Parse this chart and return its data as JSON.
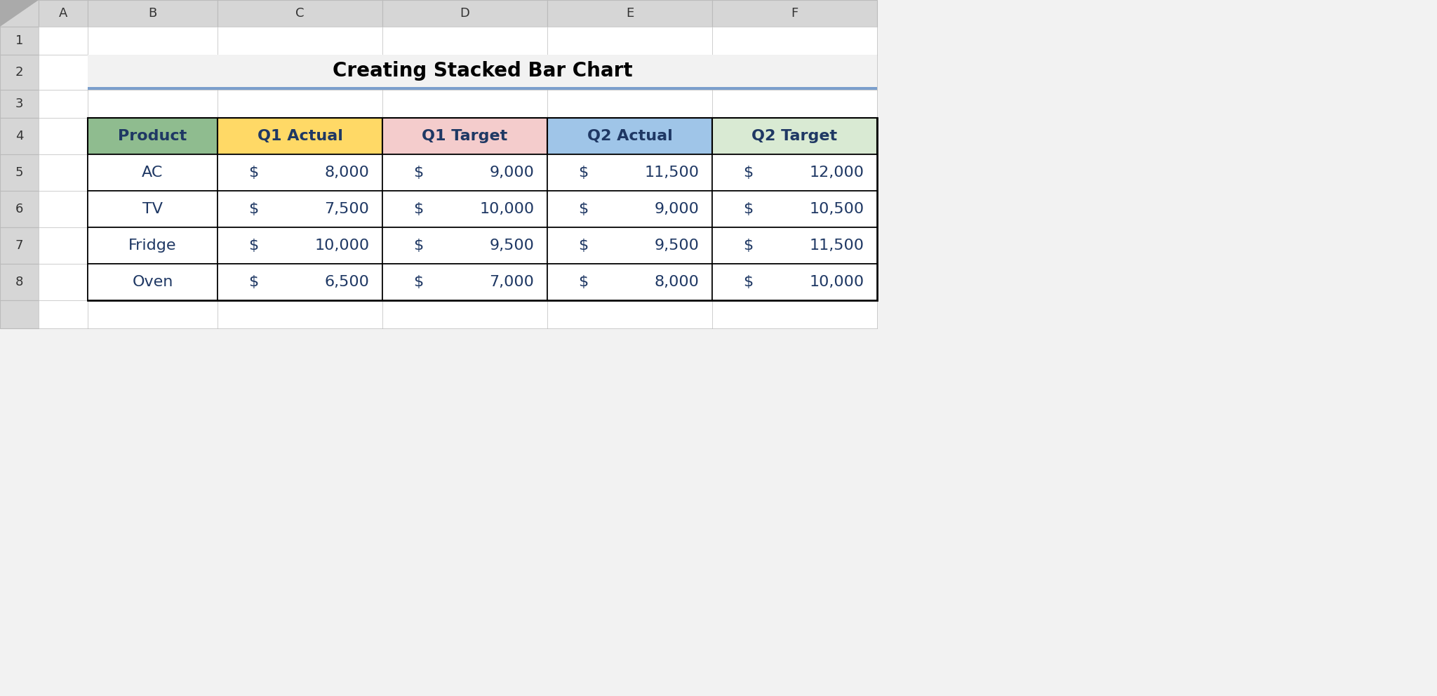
{
  "title": "Creating Stacked Bar Chart",
  "title_fontsize": 20,
  "col_headers": [
    "Product",
    "Q1 Actual",
    "Q1 Target",
    "Q2 Actual",
    "Q2 Target"
  ],
  "col_header_colors": [
    "#8FBC8F",
    "#FFD966",
    "#F4CCCC",
    "#9FC5E8",
    "#D9EAD3"
  ],
  "rows": [
    [
      "AC",
      8000,
      9000,
      11500,
      12000
    ],
    [
      "TV",
      7500,
      10000,
      9000,
      10500
    ],
    [
      "Fridge",
      10000,
      9500,
      9500,
      11500
    ],
    [
      "Oven",
      6500,
      7000,
      8000,
      10000
    ]
  ],
  "bg_color": "#F2F2F2",
  "sheet_bg": "#FFFFFF",
  "grid_line_color": "#000000",
  "header_row_color": "#E2EFDA",
  "title_bg_color": "#F2F2F2",
  "title_underline_color": "#7B9FCC",
  "row_label_color": "#FFFFFF",
  "cell_bg_color": "#FFFFFF",
  "text_color": "#1F3864",
  "excel_col_headers": [
    "A",
    "B",
    "C",
    "D",
    "E",
    "F"
  ],
  "excel_row_headers": [
    "1",
    "2",
    "3",
    "4",
    "5",
    "6",
    "7",
    "8",
    ""
  ],
  "excel_header_bg": "#D6D6D6",
  "excel_header_border": "#BBBBBB"
}
